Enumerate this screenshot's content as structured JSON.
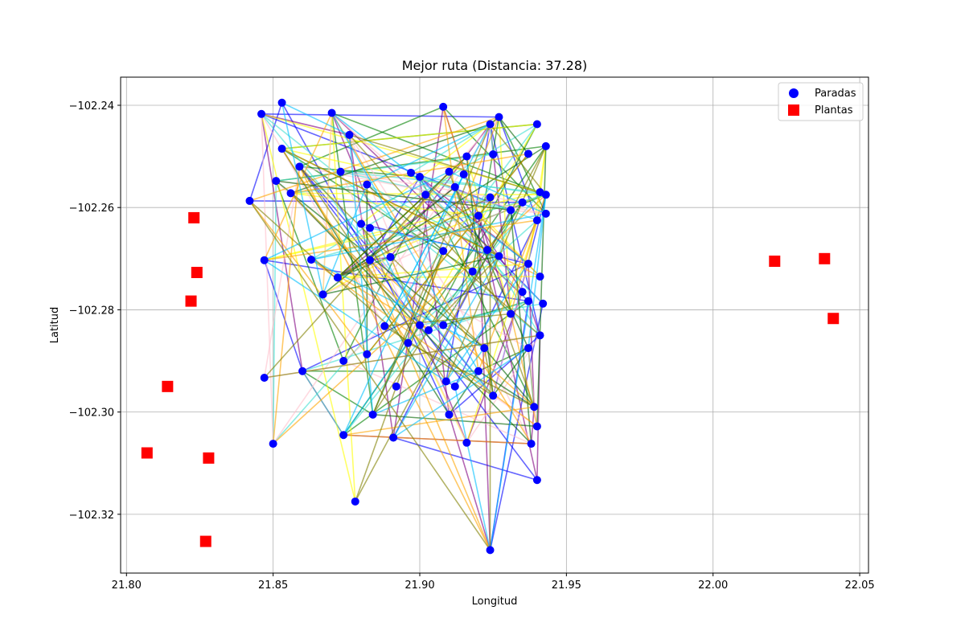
{
  "chart_data": {
    "type": "scatter",
    "title": "Mejor ruta (Distancia: 37.28)",
    "xlabel": "Longitud",
    "ylabel": "Latitud",
    "xlim": [
      21.798,
      22.053
    ],
    "ylim": [
      -102.3315,
      -102.2345
    ],
    "xticks": [
      21.8,
      21.85,
      21.9,
      21.95,
      22.0,
      22.05
    ],
    "xtick_labels": [
      "21.80",
      "21.85",
      "21.90",
      "21.95",
      "22.00",
      "22.05"
    ],
    "yticks": [
      -102.24,
      -102.26,
      -102.28,
      -102.3,
      -102.32
    ],
    "ytick_labels": [
      "−102.24",
      "−102.26",
      "−102.28",
      "−102.30",
      "−102.32"
    ],
    "grid": true,
    "legend_position": "top-right",
    "route_colors": [
      "#0000ff",
      "#008000",
      "#800080",
      "#ffff00",
      "#40e0d0",
      "#ffc0cb",
      "#006400",
      "#ffa500",
      "#00bfff",
      "#808000"
    ],
    "series": [
      {
        "name": "Paradas",
        "marker": "circle",
        "color": "#0000ff",
        "points": [
          [
            21.846,
            -102.2417
          ],
          [
            21.853,
            -102.2395
          ],
          [
            21.87,
            -102.2415
          ],
          [
            21.908,
            -102.2403
          ],
          [
            21.924,
            -102.2437
          ],
          [
            21.927,
            -102.2423
          ],
          [
            21.94,
            -102.2437
          ],
          [
            21.943,
            -102.248
          ],
          [
            21.876,
            -102.2458
          ],
          [
            21.853,
            -102.2485
          ],
          [
            21.859,
            -102.252
          ],
          [
            21.873,
            -102.253
          ],
          [
            21.851,
            -102.2548
          ],
          [
            21.856,
            -102.2572
          ],
          [
            21.882,
            -102.2555
          ],
          [
            21.897,
            -102.2532
          ],
          [
            21.9,
            -102.254
          ],
          [
            21.91,
            -102.253
          ],
          [
            21.915,
            -102.2535
          ],
          [
            21.916,
            -102.25
          ],
          [
            21.925,
            -102.2496
          ],
          [
            21.937,
            -102.2495
          ],
          [
            21.902,
            -102.2575
          ],
          [
            21.912,
            -102.256
          ],
          [
            21.924,
            -102.258
          ],
          [
            21.931,
            -102.2605
          ],
          [
            21.935,
            -102.259
          ],
          [
            21.941,
            -102.257
          ],
          [
            21.943,
            -102.2575
          ],
          [
            21.943,
            -102.2612
          ],
          [
            21.94,
            -102.2625
          ],
          [
            21.92,
            -102.2616
          ],
          [
            21.842,
            -102.2587
          ],
          [
            21.847,
            -102.2703
          ],
          [
            21.863,
            -102.2702
          ],
          [
            21.867,
            -102.277
          ],
          [
            21.872,
            -102.2737
          ],
          [
            21.88,
            -102.2632
          ],
          [
            21.883,
            -102.264
          ],
          [
            21.883,
            -102.2703
          ],
          [
            21.89,
            -102.2697
          ],
          [
            21.908,
            -102.2685
          ],
          [
            21.923,
            -102.2683
          ],
          [
            21.927,
            -102.2695
          ],
          [
            21.937,
            -102.271
          ],
          [
            21.941,
            -102.2735
          ],
          [
            21.935,
            -102.2765
          ],
          [
            21.937,
            -102.2783
          ],
          [
            21.942,
            -102.2788
          ],
          [
            21.931,
            -102.2808
          ],
          [
            21.918,
            -102.2725
          ],
          [
            21.888,
            -102.2832
          ],
          [
            21.9,
            -102.283
          ],
          [
            21.903,
            -102.284
          ],
          [
            21.908,
            -102.283
          ],
          [
            21.941,
            -102.285
          ],
          [
            21.896,
            -102.2865
          ],
          [
            21.922,
            -102.2875
          ],
          [
            21.937,
            -102.2875
          ],
          [
            21.874,
            -102.29
          ],
          [
            21.882,
            -102.2887
          ],
          [
            21.92,
            -102.292
          ],
          [
            21.847,
            -102.2933
          ],
          [
            21.86,
            -102.292
          ],
          [
            21.892,
            -102.295
          ],
          [
            21.909,
            -102.294
          ],
          [
            21.912,
            -102.295
          ],
          [
            21.925,
            -102.2968
          ],
          [
            21.939,
            -102.299
          ],
          [
            21.884,
            -102.3005
          ],
          [
            21.91,
            -102.3005
          ],
          [
            21.891,
            -102.305
          ],
          [
            21.874,
            -102.3045
          ],
          [
            21.916,
            -102.306
          ],
          [
            21.938,
            -102.3062
          ],
          [
            21.94,
            -102.3028
          ],
          [
            21.85,
            -102.3062
          ],
          [
            21.878,
            -102.3175
          ],
          [
            21.94,
            -102.3133
          ],
          [
            21.924,
            -102.327
          ]
        ]
      },
      {
        "name": "Plantas",
        "marker": "square",
        "color": "#ff0000",
        "points": [
          [
            21.823,
            -102.262
          ],
          [
            21.824,
            -102.2727
          ],
          [
            21.822,
            -102.2783
          ],
          [
            21.814,
            -102.295
          ],
          [
            21.807,
            -102.308
          ],
          [
            21.828,
            -102.309
          ],
          [
            21.827,
            -102.3253
          ],
          [
            22.021,
            -102.2705
          ],
          [
            22.038,
            -102.27
          ],
          [
            22.041,
            -102.2817
          ]
        ]
      }
    ]
  }
}
